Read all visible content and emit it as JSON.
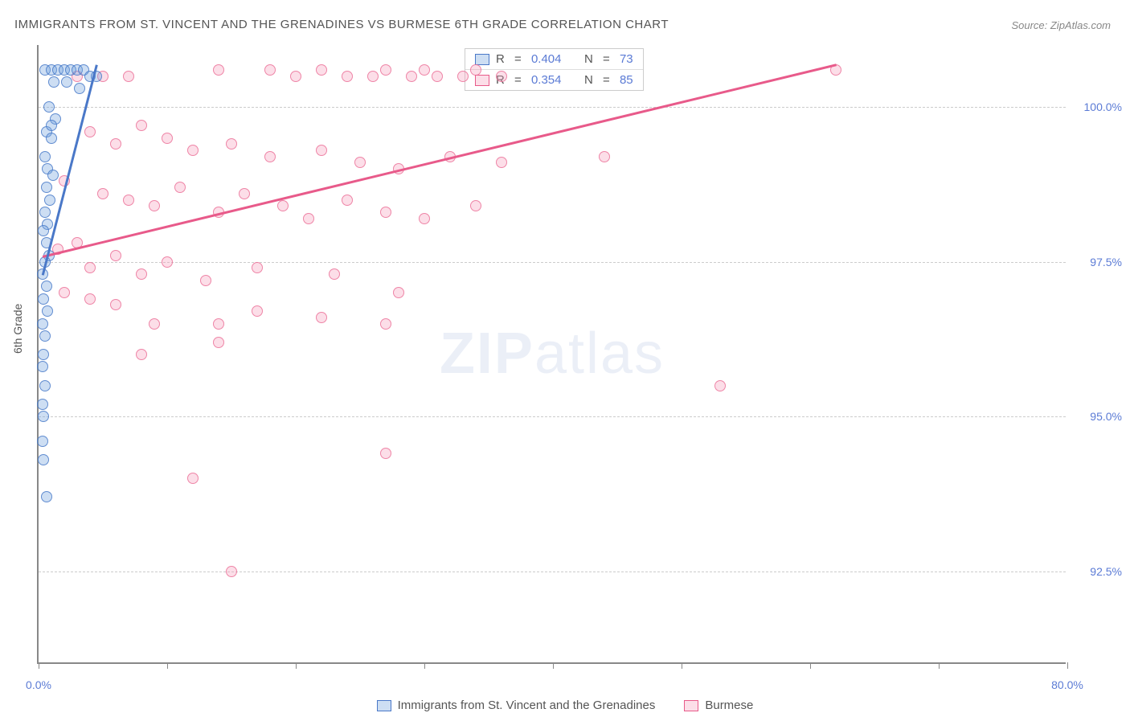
{
  "title": "IMMIGRANTS FROM ST. VINCENT AND THE GRENADINES VS BURMESE 6TH GRADE CORRELATION CHART",
  "source": "Source: ZipAtlas.com",
  "ylabel": "6th Grade",
  "watermark_a": "ZIP",
  "watermark_b": "atlas",
  "chart": {
    "type": "scatter",
    "xlim": [
      0,
      80
    ],
    "ylim": [
      91,
      101
    ],
    "xticks": [
      0,
      10,
      20,
      30,
      40,
      50,
      60,
      70,
      80
    ],
    "xtick_labels": {
      "0": "0.0%",
      "80": "80.0%"
    },
    "yticks": [
      92.5,
      95.0,
      97.5,
      100.0
    ],
    "ytick_labels": [
      "92.5%",
      "95.0%",
      "97.5%",
      "100.0%"
    ],
    "grid_color": "#cccccc",
    "axis_color": "#888888",
    "background_color": "#ffffff"
  },
  "series": {
    "blue": {
      "label": "Immigrants from St. Vincent and the Grenadines",
      "color_fill": "rgba(111,160,220,0.35)",
      "color_stroke": "#4a78c8",
      "R": "0.404",
      "N": "73",
      "trend": {
        "x1": 0.3,
        "y1": 97.3,
        "x2": 4.5,
        "y2": 100.7
      },
      "points": [
        [
          0.5,
          100.6
        ],
        [
          1.0,
          100.6
        ],
        [
          1.5,
          100.6
        ],
        [
          2.0,
          100.6
        ],
        [
          2.5,
          100.6
        ],
        [
          3.0,
          100.6
        ],
        [
          3.5,
          100.6
        ],
        [
          4.0,
          100.5
        ],
        [
          4.5,
          100.5
        ],
        [
          1.2,
          100.4
        ],
        [
          2.2,
          100.4
        ],
        [
          3.2,
          100.3
        ],
        [
          0.8,
          100.0
        ],
        [
          1.3,
          99.8
        ],
        [
          0.6,
          99.6
        ],
        [
          1.0,
          99.5
        ],
        [
          0.5,
          99.2
        ],
        [
          0.7,
          99.0
        ],
        [
          1.1,
          98.9
        ],
        [
          0.6,
          98.7
        ],
        [
          0.9,
          98.5
        ],
        [
          0.5,
          98.3
        ],
        [
          0.7,
          98.1
        ],
        [
          1.0,
          99.7
        ],
        [
          0.4,
          98.0
        ],
        [
          0.6,
          97.8
        ],
        [
          0.8,
          97.6
        ],
        [
          0.5,
          97.5
        ],
        [
          0.3,
          97.3
        ],
        [
          0.6,
          97.1
        ],
        [
          0.4,
          96.9
        ],
        [
          0.7,
          96.7
        ],
        [
          0.3,
          96.5
        ],
        [
          0.5,
          96.3
        ],
        [
          0.4,
          96.0
        ],
        [
          0.3,
          95.8
        ],
        [
          0.5,
          95.5
        ],
        [
          0.3,
          95.2
        ],
        [
          0.4,
          95.0
        ],
        [
          0.3,
          94.6
        ],
        [
          0.4,
          94.3
        ],
        [
          0.6,
          93.7
        ]
      ]
    },
    "pink": {
      "label": "Burmese",
      "color_fill": "rgba(245,160,190,0.35)",
      "color_stroke": "#e85a8a",
      "R": "0.354",
      "N": "85",
      "trend": {
        "x1": 0.3,
        "y1": 97.6,
        "x2": 62,
        "y2": 100.7
      },
      "points": [
        [
          3,
          100.5
        ],
        [
          5,
          100.5
        ],
        [
          7,
          100.5
        ],
        [
          14,
          100.6
        ],
        [
          18,
          100.6
        ],
        [
          20,
          100.5
        ],
        [
          22,
          100.6
        ],
        [
          24,
          100.5
        ],
        [
          26,
          100.5
        ],
        [
          27,
          100.6
        ],
        [
          29,
          100.5
        ],
        [
          30,
          100.6
        ],
        [
          31,
          100.5
        ],
        [
          33,
          100.5
        ],
        [
          34,
          100.6
        ],
        [
          36,
          100.5
        ],
        [
          62,
          100.6
        ],
        [
          4,
          99.6
        ],
        [
          6,
          99.4
        ],
        [
          8,
          99.7
        ],
        [
          10,
          99.5
        ],
        [
          12,
          99.3
        ],
        [
          15,
          99.4
        ],
        [
          18,
          99.2
        ],
        [
          22,
          99.3
        ],
        [
          25,
          99.1
        ],
        [
          28,
          99.0
        ],
        [
          32,
          99.2
        ],
        [
          36,
          99.1
        ],
        [
          44,
          99.2
        ],
        [
          2,
          98.8
        ],
        [
          5,
          98.6
        ],
        [
          7,
          98.5
        ],
        [
          9,
          98.4
        ],
        [
          11,
          98.7
        ],
        [
          14,
          98.3
        ],
        [
          16,
          98.6
        ],
        [
          19,
          98.4
        ],
        [
          21,
          98.2
        ],
        [
          24,
          98.5
        ],
        [
          27,
          98.3
        ],
        [
          30,
          98.2
        ],
        [
          34,
          98.4
        ],
        [
          1.5,
          97.7
        ],
        [
          3,
          97.8
        ],
        [
          4,
          97.4
        ],
        [
          6,
          97.6
        ],
        [
          8,
          97.3
        ],
        [
          10,
          97.5
        ],
        [
          13,
          97.2
        ],
        [
          17,
          97.4
        ],
        [
          23,
          97.3
        ],
        [
          28,
          97.0
        ],
        [
          2,
          97.0
        ],
        [
          4,
          96.9
        ],
        [
          6,
          96.8
        ],
        [
          9,
          96.5
        ],
        [
          14,
          96.5
        ],
        [
          17,
          96.7
        ],
        [
          22,
          96.6
        ],
        [
          8,
          96.0
        ],
        [
          14,
          96.2
        ],
        [
          27,
          96.5
        ],
        [
          53,
          95.5
        ],
        [
          12,
          94.0
        ],
        [
          27,
          94.4
        ],
        [
          15,
          92.5
        ]
      ]
    }
  },
  "legend": {
    "r_label": "R",
    "n_label": "N",
    "eq": " = "
  }
}
